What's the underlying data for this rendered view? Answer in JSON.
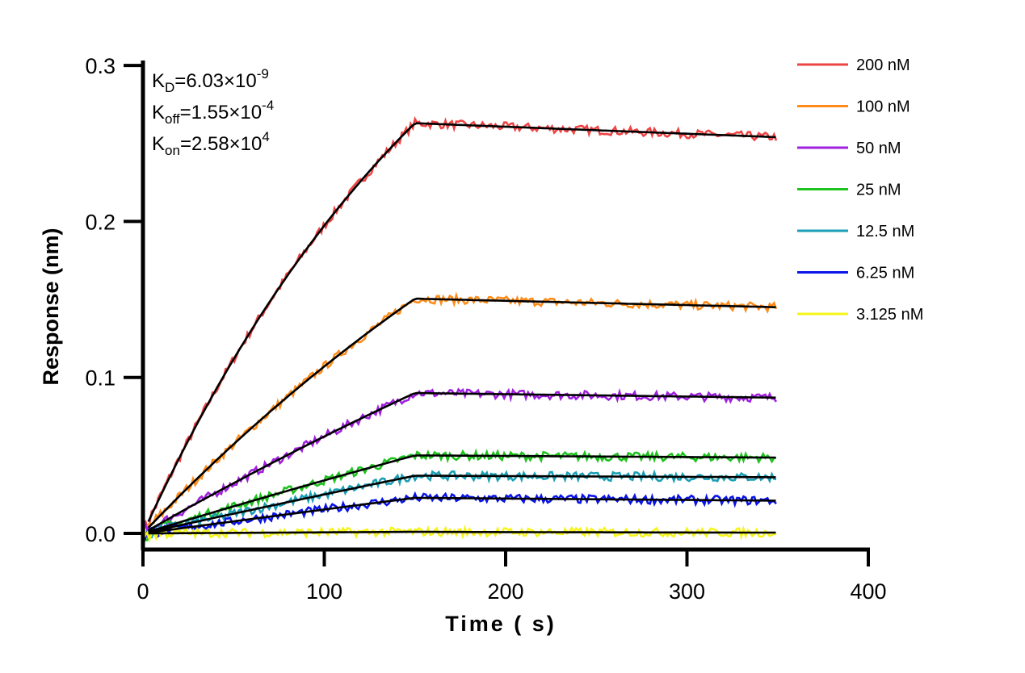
{
  "chart_data": {
    "type": "line",
    "title": "",
    "xlabel": "Time ( s)",
    "ylabel": "Response (nm)",
    "xlim": [
      0,
      400
    ],
    "ylim": [
      -0.01,
      0.3
    ],
    "x_ticks": [
      "0",
      "100",
      "200",
      "300",
      "400"
    ],
    "y_ticks": [
      "0.0",
      "0.1",
      "0.2",
      "0.3"
    ],
    "grid": false,
    "legend_placement": "right",
    "association_end_s": 150,
    "dissociation_end_s": 350,
    "annotations": {
      "kd": {
        "label": "K",
        "sub": "D",
        "value": "=6.03×10",
        "exp": "-9"
      },
      "koff": {
        "label": "K",
        "sub": "off",
        "value": "=1.55×10",
        "exp": "-4"
      },
      "kon": {
        "label": "K",
        "sub": "on",
        "value": "=2.58×10",
        "exp": "4"
      }
    },
    "kinetics": {
      "kon": 25800,
      "koff": 0.000155
    },
    "fit_color": "#000000",
    "series": [
      {
        "name": "200 nM",
        "conc_nM": 200,
        "color": "#ef4444",
        "response_at_150s": 0.263,
        "response_at_350s": 0.254
      },
      {
        "name": "100 nM",
        "conc_nM": 100,
        "color": "#ff8c1a",
        "response_at_150s": 0.1505,
        "response_at_350s": 0.145
      },
      {
        "name": "50 nM",
        "conc_nM": 50,
        "color": "#a020e0",
        "response_at_150s": 0.09,
        "response_at_350s": 0.087
      },
      {
        "name": "25 nM",
        "conc_nM": 25,
        "color": "#1ec31e",
        "response_at_150s": 0.05,
        "response_at_350s": 0.0486
      },
      {
        "name": "12.5 nM",
        "conc_nM": 12.5,
        "color": "#1a9fb5",
        "response_at_150s": 0.037,
        "response_at_350s": 0.036
      },
      {
        "name": "6.25 nM",
        "conc_nM": 6.25,
        "color": "#0a14e6",
        "response_at_150s": 0.0228,
        "response_at_350s": 0.021
      },
      {
        "name": "3.125 nM",
        "conc_nM": 3.125,
        "color": "#f5f51a",
        "response_at_150s": 0.001,
        "response_at_350s": 0.0005
      }
    ]
  }
}
